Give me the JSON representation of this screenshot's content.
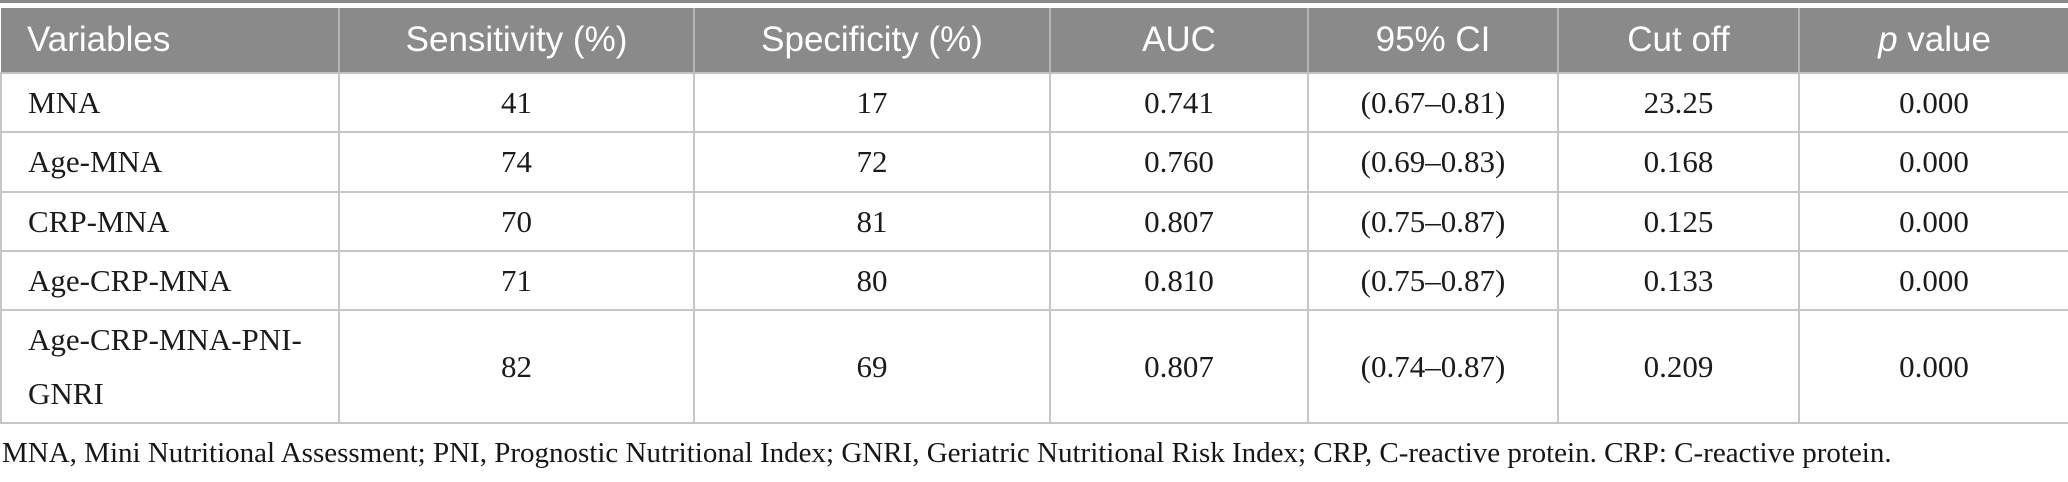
{
  "colors": {
    "header_bg": "#8a8a8a",
    "header_text": "#ffffff",
    "body_text": "#1b1b1b",
    "grid_line": "#c6c6c6"
  },
  "table": {
    "columns": [
      {
        "label": "Variables"
      },
      {
        "label": "Sensitivity (%)"
      },
      {
        "label": "Specificity (%)"
      },
      {
        "label": "AUC"
      },
      {
        "label": "95% CI"
      },
      {
        "label": "Cut off"
      },
      {
        "label_italic": "p",
        "label_rest": " value"
      }
    ],
    "rows": [
      [
        "MNA",
        "41",
        "17",
        "0.741",
        "(0.67–0.81)",
        "23.25",
        "0.000"
      ],
      [
        "Age-MNA",
        "74",
        "72",
        "0.760",
        "(0.69–0.83)",
        "0.168",
        "0.000"
      ],
      [
        "CRP-MNA",
        "70",
        "81",
        "0.807",
        "(0.75–0.87)",
        "0.125",
        "0.000"
      ],
      [
        "Age-CRP-MNA",
        "71",
        "80",
        "0.810",
        "(0.75–0.87)",
        "0.133",
        "0.000"
      ],
      [
        "Age-CRP-MNA-PNI-GNRI",
        "82",
        "69",
        "0.807",
        "(0.74–0.87)",
        "0.209",
        "0.000"
      ]
    ]
  },
  "footnote": "MNA, Mini Nutritional Assessment; PNI, Prognostic Nutritional Index; GNRI, Geriatric Nutritional Risk Index; CRP, C-reactive protein. CRP: C-reactive protein."
}
